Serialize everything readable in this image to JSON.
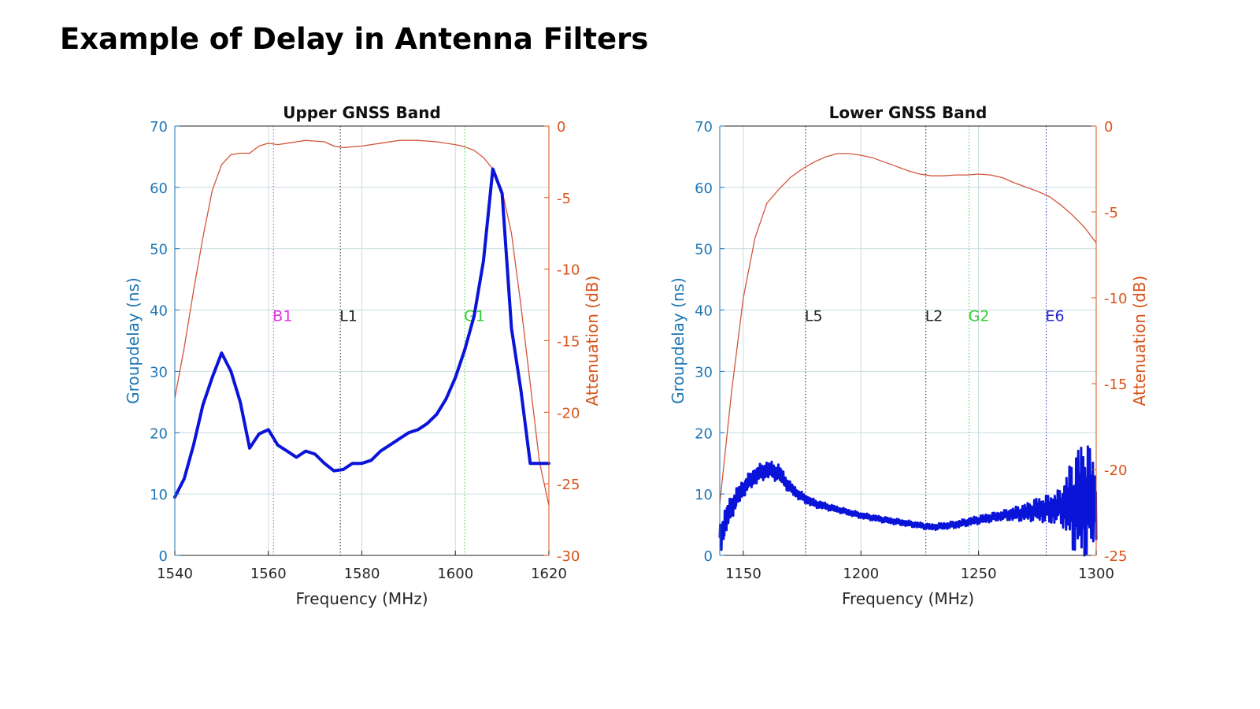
{
  "slide": {
    "title": "Example of Delay in Antenna Filters"
  },
  "colors": {
    "delay": "#0a14d9",
    "attenuation": "#d2553a",
    "left_axis": "#1f77b4",
    "right_axis": "#d95319",
    "grid": "#c9dbe0",
    "B1": "#e033e0",
    "L1": "#222222",
    "G1": "#33cc33",
    "L5": "#222222",
    "L2": "#222222",
    "G2": "#33cc33",
    "E6": "#2424cc"
  },
  "chart_data": [
    {
      "type": "line",
      "title": "Upper GNSS Band",
      "xlabel": "Frequency (MHz)",
      "ylabel_left": "Groupdelay (ns)",
      "ylabel_right": "Attenuation (dB)",
      "xlim": [
        1540,
        1620
      ],
      "ylim_left": [
        0,
        70
      ],
      "ylim_right": [
        -30,
        0
      ],
      "xticks": [
        1540,
        1560,
        1580,
        1600,
        1620
      ],
      "yticks_left": [
        0,
        10,
        20,
        30,
        40,
        50,
        60,
        70
      ],
      "yticks_right": [
        -30,
        -25,
        -20,
        -15,
        -10,
        -5,
        0
      ],
      "grid": true,
      "markers": [
        {
          "label": "B1",
          "x": 1561.1,
          "color": "#e033e0"
        },
        {
          "label": "L1",
          "x": 1575.4,
          "color": "#222222"
        },
        {
          "label": "G1",
          "x": 1602.0,
          "color": "#33cc33"
        }
      ],
      "series": [
        {
          "name": "Group delay",
          "axis": "left",
          "x": [
            1540,
            1542,
            1544,
            1546,
            1548,
            1550,
            1552,
            1554,
            1556,
            1558,
            1560,
            1562,
            1564,
            1566,
            1568,
            1570,
            1572,
            1574,
            1576,
            1578,
            1580,
            1582,
            1584,
            1586,
            1588,
            1590,
            1592,
            1594,
            1596,
            1598,
            1600,
            1602,
            1604,
            1606,
            1608,
            1610,
            1612,
            1614,
            1616,
            1618,
            1620
          ],
          "values": [
            9.5,
            12.5,
            18,
            24.5,
            29,
            33,
            30,
            25,
            17.5,
            19.8,
            20.5,
            18,
            17,
            16,
            17,
            16.5,
            15,
            13.8,
            14,
            15,
            15,
            15.5,
            17,
            18,
            19,
            20,
            20.5,
            21.5,
            23,
            25.5,
            29,
            33.5,
            39,
            48,
            63,
            59,
            37,
            27,
            15,
            15,
            15
          ]
        },
        {
          "name": "Attenuation",
          "axis": "right",
          "x": [
            1540,
            1542,
            1544,
            1546,
            1548,
            1550,
            1552,
            1554,
            1556,
            1558,
            1560,
            1562,
            1564,
            1566,
            1568,
            1570,
            1572,
            1574,
            1576,
            1580,
            1584,
            1588,
            1592,
            1596,
            1600,
            1602,
            1604,
            1606,
            1608,
            1610,
            1612,
            1614,
            1616,
            1618,
            1620
          ],
          "values": [
            -19,
            -15.5,
            -11.5,
            -7.8,
            -4.5,
            -2.7,
            -2,
            -1.9,
            -1.9,
            -1.4,
            -1.2,
            -1.3,
            -1.2,
            -1.1,
            -1.0,
            -1.05,
            -1.1,
            -1.4,
            -1.5,
            -1.4,
            -1.2,
            -1.0,
            -1.0,
            -1.1,
            -1.3,
            -1.45,
            -1.7,
            -2.2,
            -3.0,
            -4.5,
            -7.5,
            -12.5,
            -18,
            -23.5,
            -26.5
          ]
        }
      ]
    },
    {
      "type": "line",
      "title": "Lower GNSS Band",
      "xlabel": "Frequency (MHz)",
      "ylabel_left": "Groupdelay (ns)",
      "ylabel_right": "Attenuation (dB)",
      "xlim": [
        1140,
        1300
      ],
      "ylim_left": [
        0,
        70
      ],
      "ylim_right": [
        -25,
        0
      ],
      "xticks": [
        1150,
        1200,
        1250,
        1300
      ],
      "yticks_left": [
        0,
        10,
        20,
        30,
        40,
        50,
        60,
        70
      ],
      "yticks_right": [
        -25,
        -20,
        -15,
        -10,
        -5,
        0
      ],
      "grid": true,
      "markers": [
        {
          "label": "L5",
          "x": 1176.45,
          "color": "#222222"
        },
        {
          "label": "L2",
          "x": 1227.6,
          "color": "#222222"
        },
        {
          "label": "G2",
          "x": 1246.0,
          "color": "#33cc33"
        },
        {
          "label": "E6",
          "x": 1278.75,
          "color": "#2424cc"
        }
      ],
      "series": [
        {
          "name": "Group delay",
          "axis": "left",
          "x": [
            1140,
            1145,
            1150,
            1155,
            1160,
            1165,
            1170,
            1175,
            1180,
            1190,
            1200,
            1210,
            1220,
            1230,
            1240,
            1250,
            1260,
            1270,
            1275,
            1280,
            1285,
            1290,
            1295,
            1300
          ],
          "values": [
            3,
            8,
            11,
            13,
            14,
            13.5,
            11,
            9.5,
            8.5,
            7.5,
            6.5,
            5.8,
            5.2,
            4.6,
            5,
            5.8,
            6.5,
            7,
            7.5,
            7.5,
            8,
            8.5,
            9,
            9
          ],
          "noise": [
            3,
            2,
            1.5,
            1.5,
            1.5,
            1.5,
            1,
            0.8,
            0.7,
            0.5,
            0.5,
            0.5,
            0.5,
            0.5,
            0.6,
            0.7,
            0.8,
            1.5,
            2,
            2.5,
            3,
            8,
            11,
            7
          ]
        },
        {
          "name": "Attenuation",
          "axis": "right",
          "x": [
            1140,
            1145,
            1150,
            1155,
            1160,
            1165,
            1170,
            1175,
            1180,
            1185,
            1190,
            1195,
            1200,
            1205,
            1210,
            1215,
            1220,
            1225,
            1230,
            1235,
            1240,
            1245,
            1250,
            1255,
            1260,
            1265,
            1270,
            1275,
            1280,
            1285,
            1290,
            1295,
            1300
          ],
          "values": [
            -22,
            -15.5,
            -10,
            -6.5,
            -4.5,
            -3.7,
            -3.0,
            -2.5,
            -2.1,
            -1.8,
            -1.6,
            -1.6,
            -1.7,
            -1.85,
            -2.1,
            -2.35,
            -2.6,
            -2.8,
            -2.9,
            -2.9,
            -2.85,
            -2.85,
            -2.8,
            -2.85,
            -3.0,
            -3.3,
            -3.55,
            -3.8,
            -4.1,
            -4.6,
            -5.2,
            -5.9,
            -6.8
          ]
        }
      ]
    }
  ]
}
